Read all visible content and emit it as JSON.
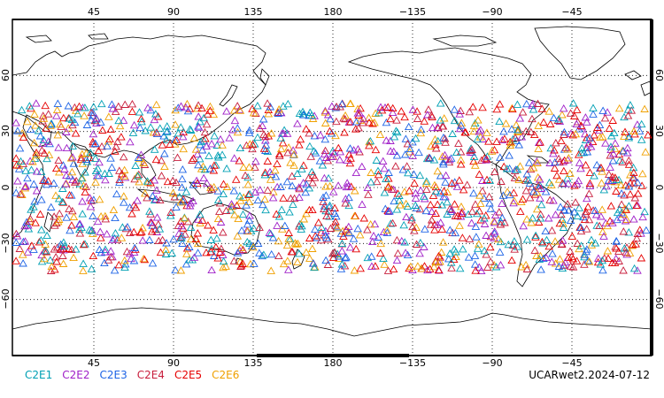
{
  "map": {
    "top_ticks": [
      "45",
      "90",
      "135",
      "180",
      "−135",
      "−90",
      "−45"
    ],
    "bottom_ticks": [
      "45",
      "90",
      "135",
      "180",
      "−135",
      "−90",
      "−45"
    ],
    "left_ticks": [
      "60",
      "30",
      "0",
      "−30",
      "−60"
    ],
    "right_ticks": [
      "60",
      "30",
      "0",
      "−30",
      "−60"
    ],
    "lon_range": [
      0,
      360
    ],
    "lat_range": [
      -90,
      90
    ],
    "grid": "dotted",
    "marker": "open-triangle",
    "observation_band_lat": [
      -45,
      45
    ]
  },
  "legend": [
    {
      "label": "C2E1",
      "color": "#00a0b4"
    },
    {
      "label": "C2E2",
      "color": "#a020c8"
    },
    {
      "label": "C2E3",
      "color": "#1e64e6"
    },
    {
      "label": "C2E4",
      "color": "#c81e3c"
    },
    {
      "label": "C2E5",
      "color": "#e60000"
    },
    {
      "label": "C2E6",
      "color": "#f0a000"
    }
  ],
  "stamp": "UCARwet2.2024-07-12"
}
